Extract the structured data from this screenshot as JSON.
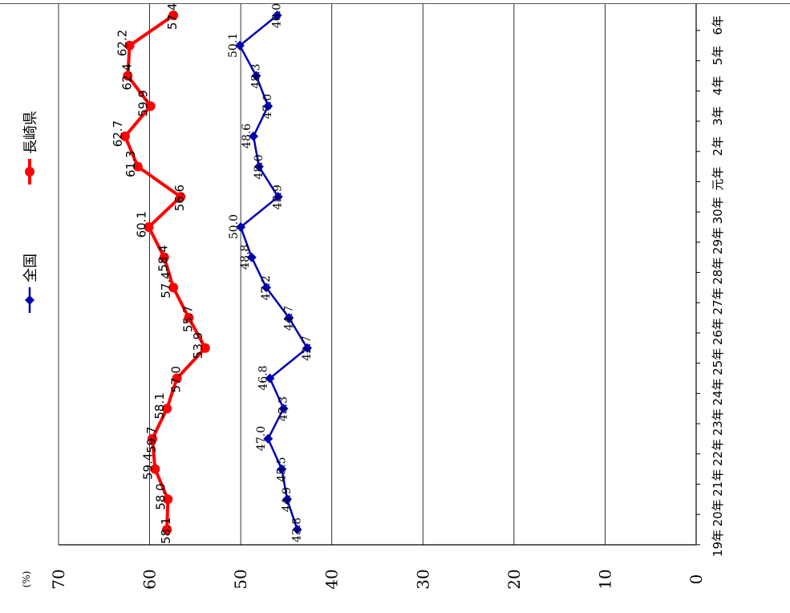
{
  "chart_data": {
    "type": "line",
    "orientation": "rotated-90-ccw",
    "unit_label": "(%)",
    "ylim": [
      0,
      70
    ],
    "yticks": [
      "0",
      "10",
      "20",
      "30",
      "40",
      "50",
      "60",
      "70"
    ],
    "categories": [
      "19年",
      "20年",
      "21年",
      "22年",
      "23年",
      "24年",
      "25年",
      "26年",
      "27年",
      "28年",
      "29年",
      "30年",
      "元年",
      "2年",
      "3年",
      "4年",
      "5年",
      "6年"
    ],
    "series": [
      {
        "name": "全国",
        "color": "#0000b4",
        "marker": "diamond",
        "values": [
          43.8,
          44.9,
          45.5,
          47.0,
          45.3,
          46.8,
          42.7,
          44.7,
          47.2,
          48.8,
          50.0,
          45.9,
          48.0,
          48.6,
          47.0,
          48.3,
          50.1,
          46.0
        ],
        "labels": [
          "43.8",
          "44.9",
          "45.5",
          "47.0",
          "45.3",
          "46.8",
          "42.7",
          "44.7",
          "47.2",
          "48.8",
          "50.0",
          "45.9",
          "48.0",
          "48.6",
          "47.0",
          "48.3",
          "50.1",
          "46.0"
        ]
      },
      {
        "name": "長崎県",
        "color": "#ff0000",
        "marker": "circle",
        "values": [
          58.1,
          58.0,
          59.4,
          59.7,
          58.1,
          57.0,
          53.9,
          55.7,
          57.4,
          58.4,
          60.1,
          56.6,
          61.3,
          62.7,
          59.9,
          62.4,
          62.2,
          57.4
        ],
        "labels": [
          "58.1",
          "58.0",
          "59.4",
          "59.7",
          "58.1",
          "57.0",
          "53.9",
          "55.7",
          "57.4",
          "58.4",
          "60.1",
          "56.6",
          "61.3",
          "62.7",
          "59.9",
          "62.4",
          "62.2",
          "57.4"
        ]
      }
    ],
    "grid": true,
    "legend": "left"
  }
}
